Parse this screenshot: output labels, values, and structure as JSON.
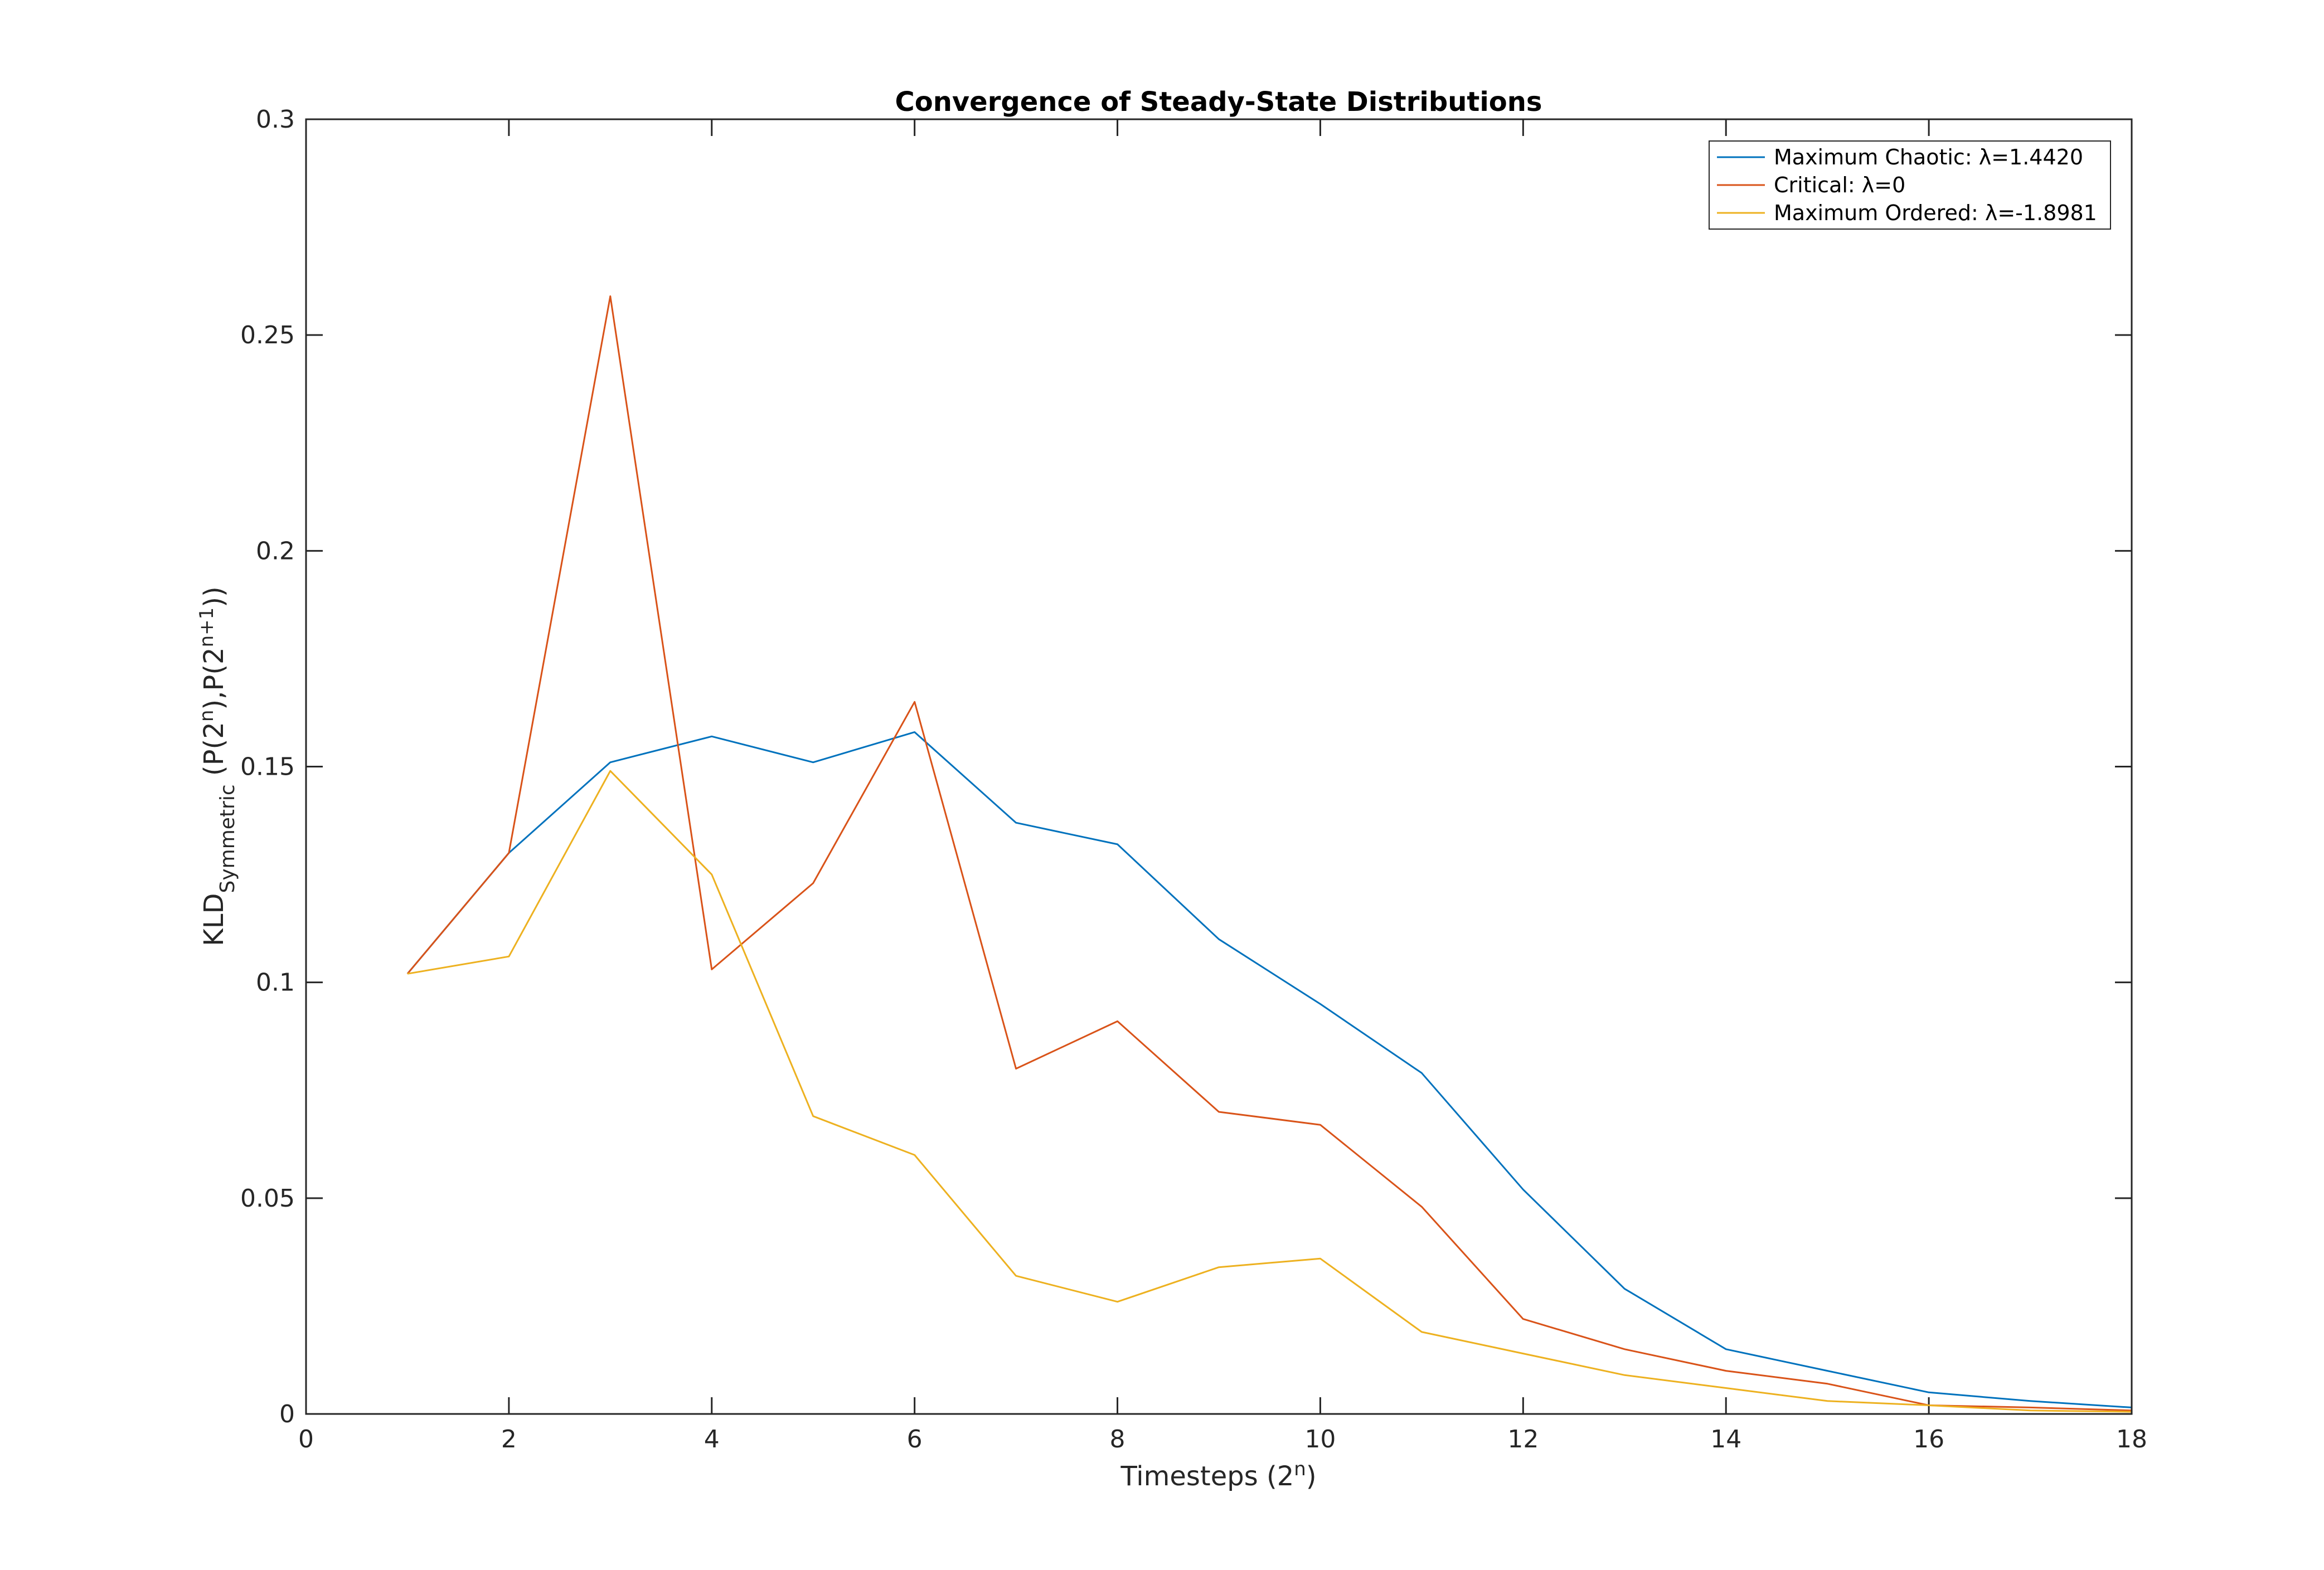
{
  "chart_data": {
    "type": "line",
    "title": "Convergence of Steady-State Distributions",
    "xlabel": {
      "prefix": "Timesteps (2",
      "sup": "n",
      "suffix": ")"
    },
    "ylabel": {
      "base": "KLD",
      "sub": "Symmetric",
      "part1": " (P(2",
      "sup1": "n",
      "part2": "),P(2",
      "sup2": "n+1",
      "part3": "))"
    },
    "xlim": [
      0,
      18
    ],
    "ylim": [
      0,
      0.3
    ],
    "x_ticks": [
      0,
      2,
      4,
      6,
      8,
      10,
      12,
      14,
      16,
      18
    ],
    "y_ticks": [
      0,
      0.05,
      0.1,
      0.15,
      0.2,
      0.25,
      0.3
    ],
    "y_tick_labels": [
      "0",
      "0.05",
      "0.1",
      "0.15",
      "0.2",
      "0.25",
      "0.3"
    ],
    "grid": false,
    "legend_position": "top-right",
    "x": [
      1,
      2,
      3,
      4,
      5,
      6,
      7,
      8,
      9,
      10,
      11,
      12,
      13,
      14,
      15,
      16,
      17,
      18
    ],
    "series": [
      {
        "name": "Maximum Chaotic: λ=1.4420",
        "color": "#0072BD",
        "values": [
          0.102,
          0.13,
          0.151,
          0.157,
          0.151,
          0.158,
          0.137,
          0.132,
          0.11,
          0.095,
          0.079,
          0.052,
          0.029,
          0.015,
          0.01,
          0.005,
          0.003,
          0.0015
        ]
      },
      {
        "name": "Critical: λ=0",
        "color": "#D95319",
        "values": [
          0.102,
          0.13,
          0.259,
          0.103,
          0.123,
          0.165,
          0.08,
          0.091,
          0.07,
          0.067,
          0.048,
          0.022,
          0.015,
          0.01,
          0.007,
          0.002,
          0.0015,
          0.0008
        ]
      },
      {
        "name": "Maximum Ordered: λ=-1.8981",
        "color": "#EDB120",
        "values": [
          0.102,
          0.106,
          0.149,
          0.125,
          0.069,
          0.06,
          0.032,
          0.026,
          0.034,
          0.036,
          0.019,
          0.014,
          0.009,
          0.006,
          0.003,
          0.002,
          0.0008,
          0.0005
        ]
      }
    ]
  }
}
